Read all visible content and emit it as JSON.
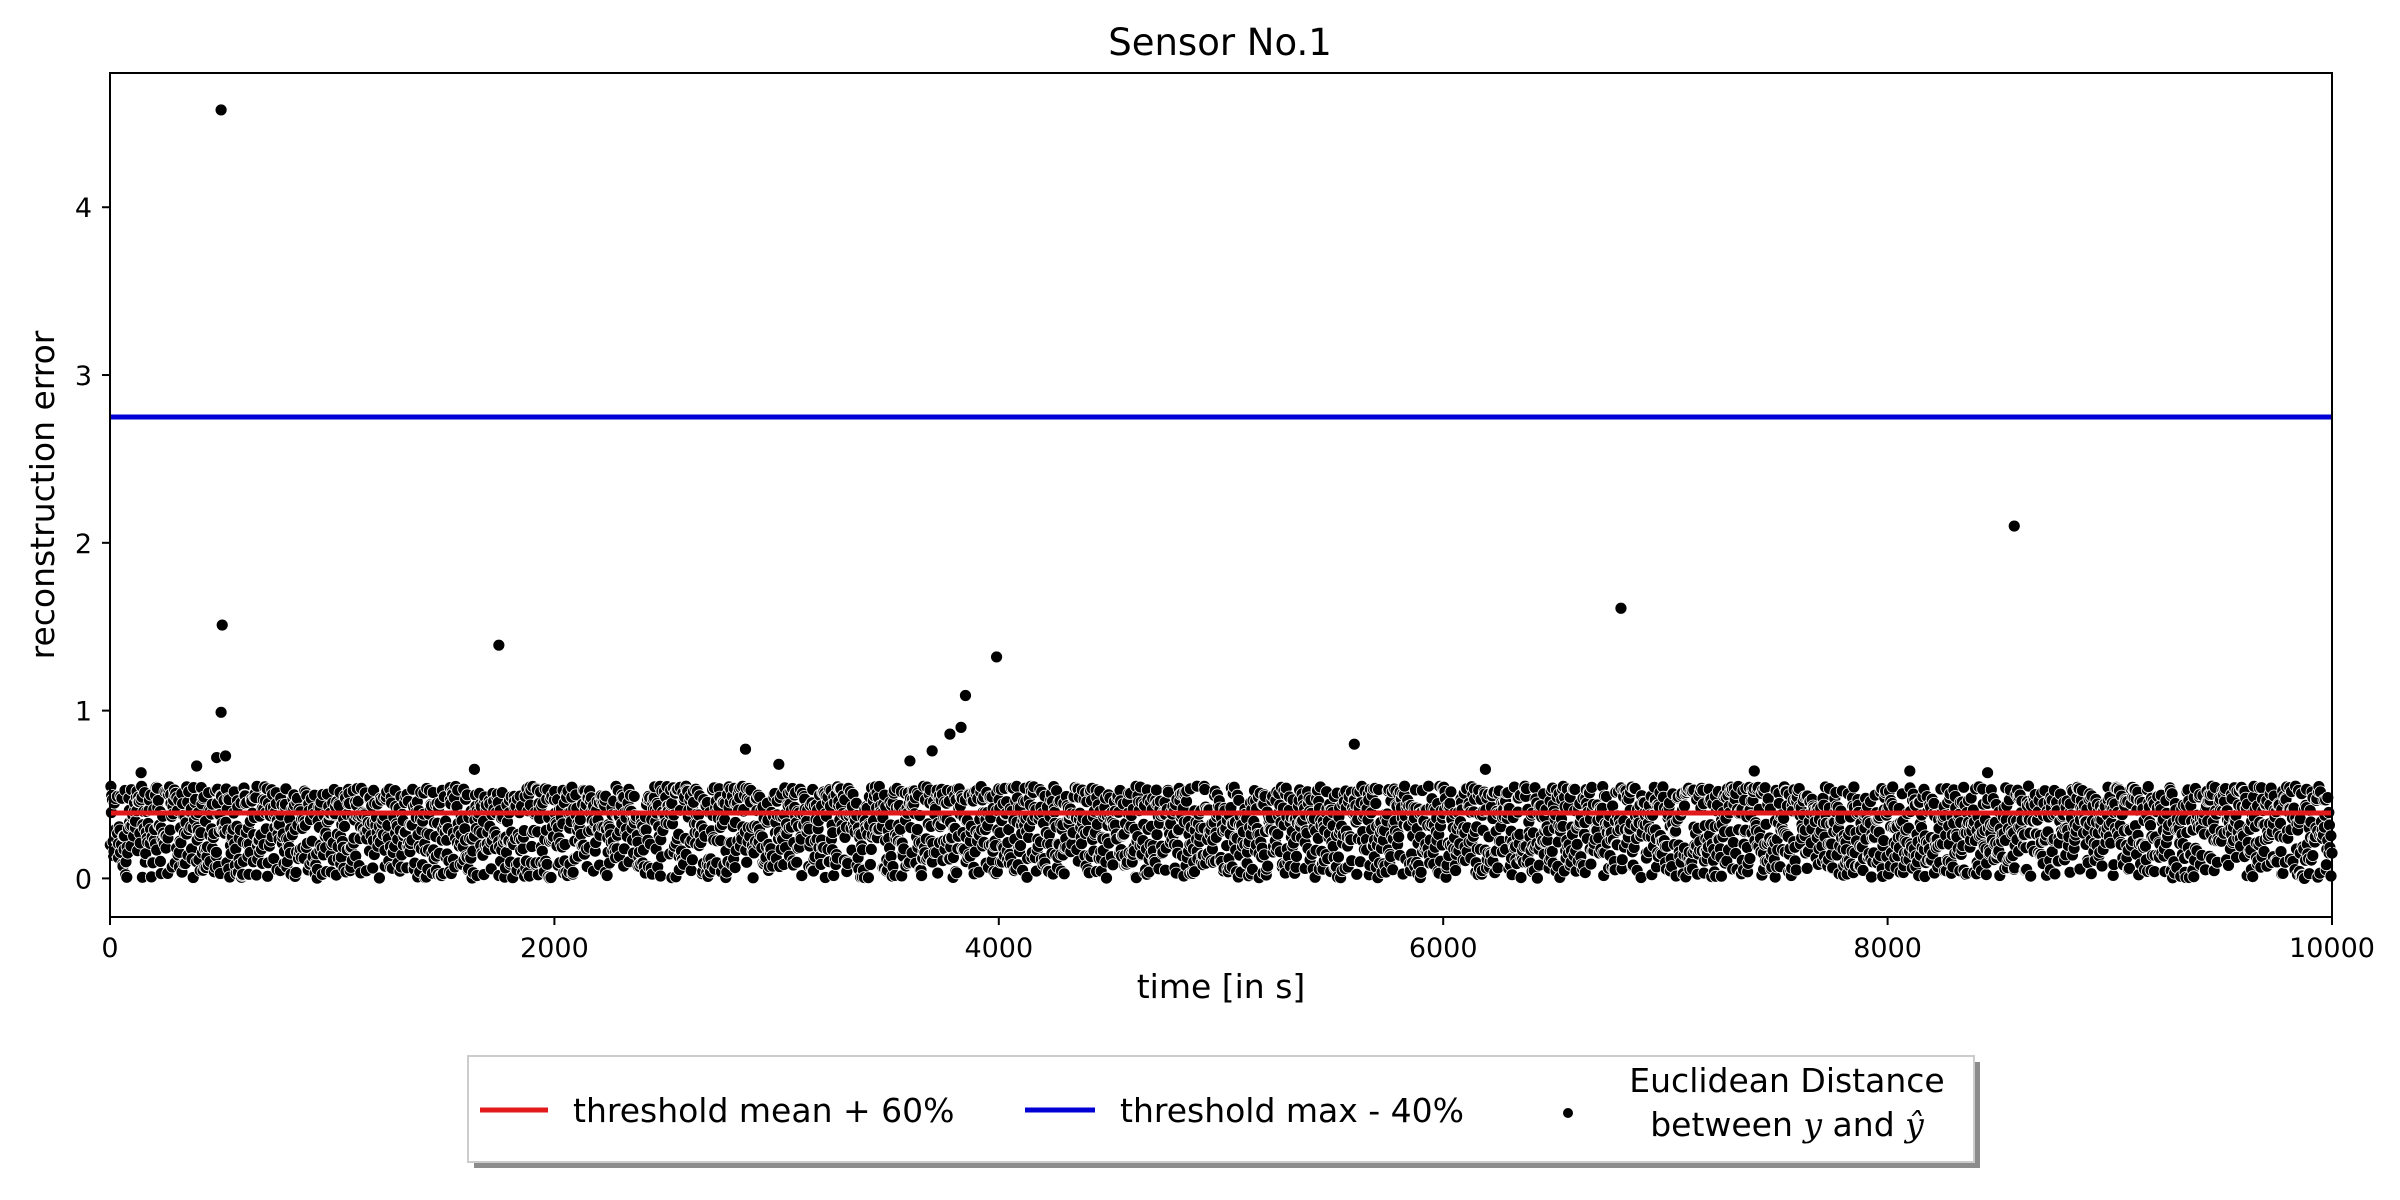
{
  "chart_data": {
    "type": "scatter",
    "title": "Sensor No.1",
    "xlabel": "time [in s]",
    "ylabel": "reconstruction error",
    "xlim": [
      0,
      10000
    ],
    "ylim": [
      -0.23,
      4.8
    ],
    "xticks": [
      0,
      2000,
      4000,
      6000,
      8000,
      10000
    ],
    "yticks": [
      0,
      1,
      2,
      3,
      4
    ],
    "grid": false,
    "legend_position": "bottom-center",
    "lines": [
      {
        "name": "threshold mean + 60%",
        "y": 0.39,
        "color": "#e31a1c"
      },
      {
        "name": "threshold max - 40%",
        "y": 2.75,
        "color": "#0000d6"
      }
    ],
    "series": [
      {
        "name_line1": "Euclidean Distance",
        "name_line2_parts": [
          "between ",
          "y",
          " and ",
          "ŷ"
        ],
        "color": "#000000",
        "description": "dense band of points between 0 and about 0.55 across 0–10000 s",
        "band": {
          "x_range": [
            0,
            10000
          ],
          "y_min": 0.0,
          "y_max": 0.55
        },
        "notable_points": [
          {
            "x": 500,
            "y": 4.58
          },
          {
            "x": 505,
            "y": 1.51
          },
          {
            "x": 500,
            "y": 0.99
          },
          {
            "x": 1750,
            "y": 1.39
          },
          {
            "x": 3990,
            "y": 1.32
          },
          {
            "x": 3850,
            "y": 1.09
          },
          {
            "x": 2860,
            "y": 0.77
          },
          {
            "x": 5600,
            "y": 0.8
          },
          {
            "x": 6800,
            "y": 1.61
          },
          {
            "x": 8570,
            "y": 2.1
          },
          {
            "x": 390,
            "y": 0.67
          },
          {
            "x": 140,
            "y": 0.63
          },
          {
            "x": 3780,
            "y": 0.86
          },
          {
            "x": 3830,
            "y": 0.9
          },
          {
            "x": 3700,
            "y": 0.76
          },
          {
            "x": 3600,
            "y": 0.7
          },
          {
            "x": 3010,
            "y": 0.68
          },
          {
            "x": 1640,
            "y": 0.65
          },
          {
            "x": 6190,
            "y": 0.65
          },
          {
            "x": 7400,
            "y": 0.64
          },
          {
            "x": 8100,
            "y": 0.64
          },
          {
            "x": 8450,
            "y": 0.63
          },
          {
            "x": 480,
            "y": 0.72
          },
          {
            "x": 520,
            "y": 0.73
          }
        ]
      }
    ]
  }
}
